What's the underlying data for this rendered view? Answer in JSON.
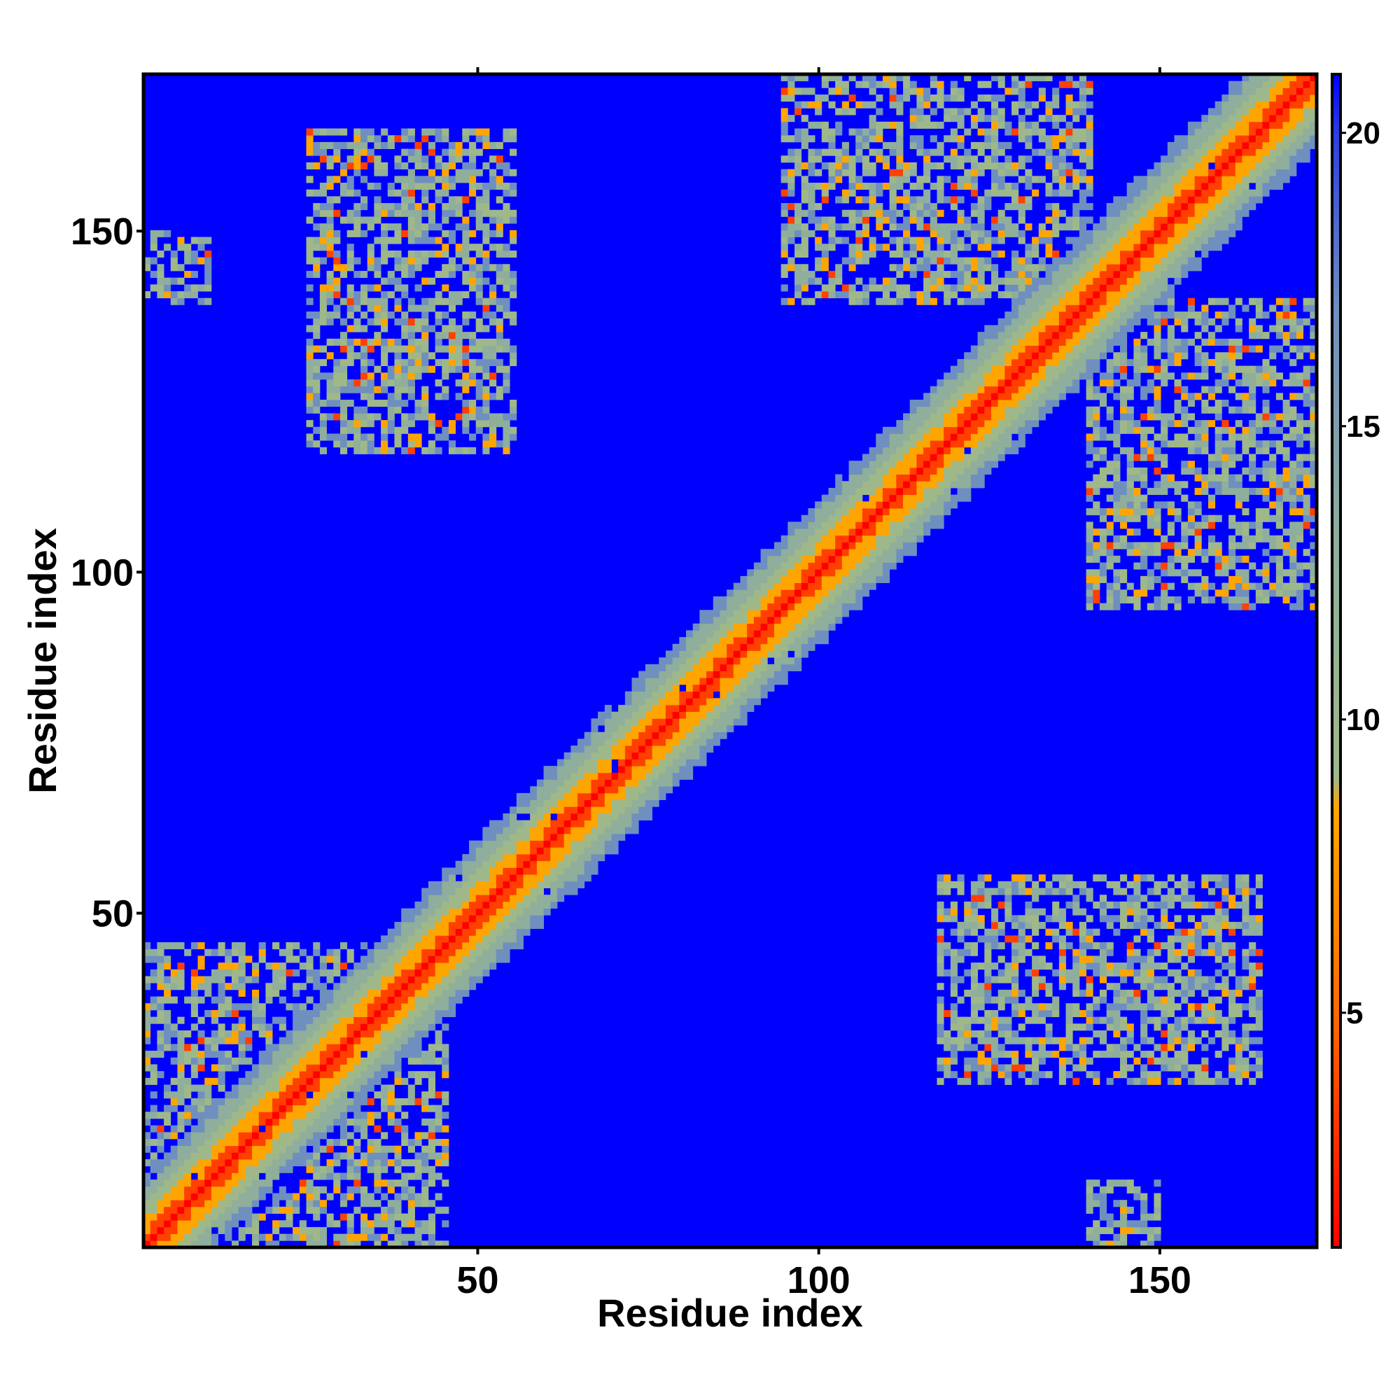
{
  "chart_data": {
    "type": "heatmap",
    "title": "",
    "xlabel": "Residue index",
    "ylabel": "Residue index",
    "xlim": [
      1,
      173
    ],
    "ylim": [
      1,
      173
    ],
    "x_ticks": [
      50,
      100,
      150
    ],
    "y_ticks": [
      50,
      100,
      150
    ],
    "x_tick_labels": [
      "50",
      "100",
      "150"
    ],
    "y_tick_labels": [
      "50",
      "100",
      "150"
    ],
    "colorbar": {
      "range": [
        1,
        21
      ],
      "ticks": [
        5,
        10,
        15,
        20
      ],
      "tick_labels": [
        "5",
        "10",
        "15",
        "20"
      ],
      "stops": [
        {
          "value": 1,
          "color": "#ff0000"
        },
        {
          "value": 5,
          "color": "#ff6a00"
        },
        {
          "value": 8.5,
          "color": "#ffa500"
        },
        {
          "value": 9,
          "color": "#9fb88a"
        },
        {
          "value": 13,
          "color": "#8fae9c"
        },
        {
          "value": 17,
          "color": "#6f8fbf"
        },
        {
          "value": 20,
          "color": "#2a3fe0"
        },
        {
          "value": 21,
          "color": "#0000ff"
        }
      ]
    },
    "grid": false,
    "colors": {
      "background": "#0000ff",
      "near": "#ff0000",
      "mid": "#ffa500",
      "far": "#9fb88a"
    },
    "features": {
      "diagonal_band_halfwidth_residues": 11,
      "contact_clusters": [
        {
          "x_range": [
            1,
            45
          ],
          "y_range": [
            1,
            45
          ],
          "description": "N-terminal dense contacts"
        },
        {
          "x_range": [
            25,
            55
          ],
          "y_range": [
            118,
            165
          ]
        },
        {
          "x_range": [
            118,
            165
          ],
          "y_range": [
            25,
            55
          ]
        },
        {
          "x_range": [
            95,
            140
          ],
          "y_range": [
            140,
            173
          ]
        },
        {
          "x_range": [
            140,
            173
          ],
          "y_range": [
            95,
            140
          ]
        },
        {
          "x_range": [
            140,
            150
          ],
          "y_range": [
            1,
            10
          ]
        },
        {
          "x_range": [
            1,
            10
          ],
          "y_range": [
            140,
            150
          ]
        }
      ]
    }
  }
}
